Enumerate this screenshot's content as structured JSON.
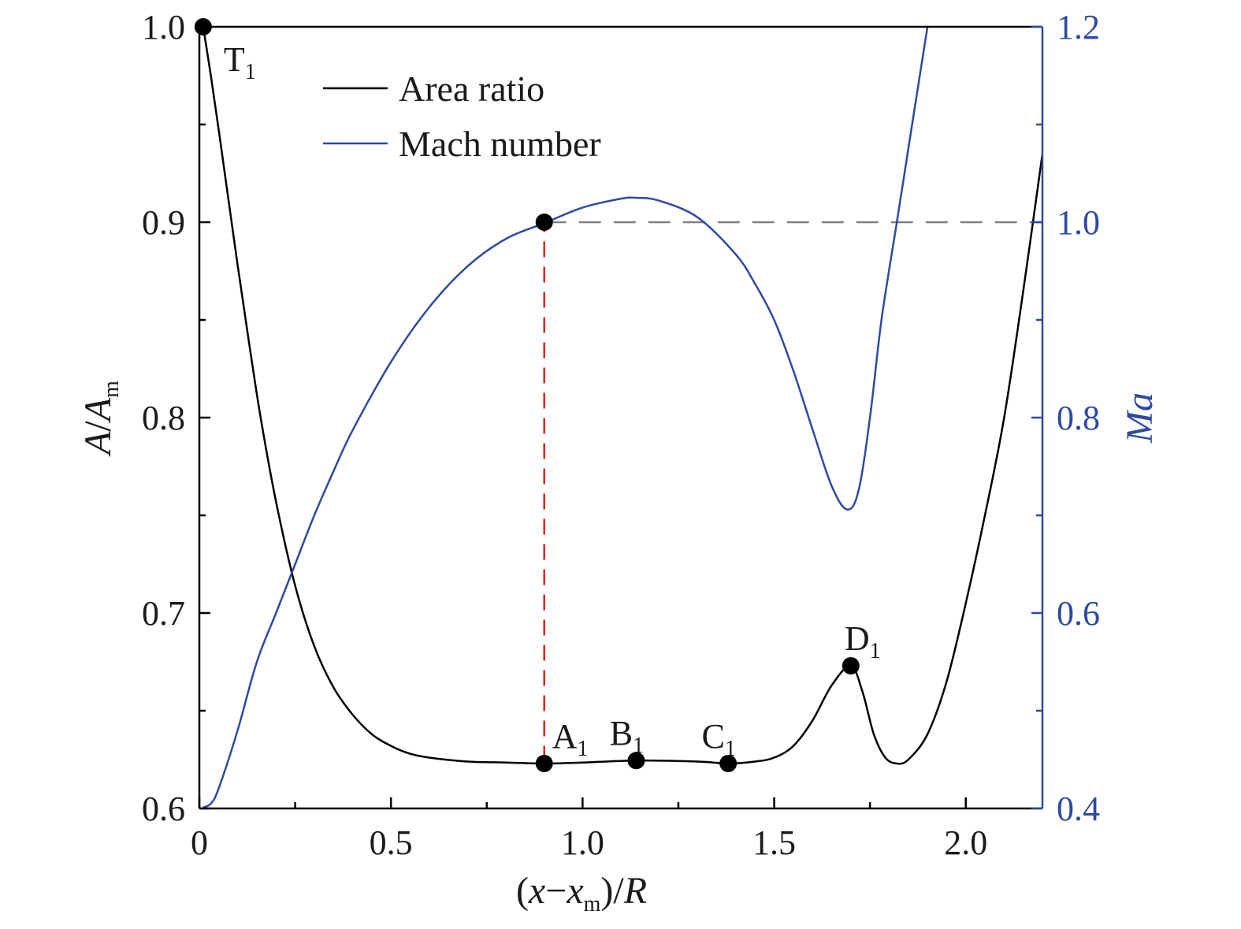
{
  "chart_data": {
    "type": "line",
    "xlabel": {
      "open": "(",
      "var": "x",
      "minus": "−",
      "var2": "x",
      "sub": "m",
      "close": ")/",
      "var3": "R"
    },
    "ylabel_left": {
      "a": "A",
      "slash": "/",
      "b": "A",
      "sub": "m"
    },
    "ylabel_right": "Ma",
    "xlim": [
      0,
      2.2
    ],
    "ylim_left": [
      0.6,
      1.0
    ],
    "ylim_right": [
      0.4,
      1.2
    ],
    "x_ticks": [
      {
        "value": 0,
        "label": "0"
      },
      {
        "value": 0.5,
        "label": "0.5"
      },
      {
        "value": 1.0,
        "label": "1.0"
      },
      {
        "value": 1.5,
        "label": "1.5"
      },
      {
        "value": 2.0,
        "label": "2.0"
      }
    ],
    "x_minor_ticks": [
      0.25,
      0.75,
      1.25,
      1.75
    ],
    "y_left_ticks": [
      {
        "value": 0.6,
        "label": "0.6"
      },
      {
        "value": 0.7,
        "label": "0.7"
      },
      {
        "value": 0.8,
        "label": "0.8"
      },
      {
        "value": 0.9,
        "label": "0.9"
      },
      {
        "value": 1.0,
        "label": "1.0"
      }
    ],
    "y_left_minor_ticks": [
      0.65,
      0.75,
      0.85,
      0.95
    ],
    "y_right_ticks": [
      {
        "value": 0.4,
        "label": "0.4"
      },
      {
        "value": 0.6,
        "label": "0.6"
      },
      {
        "value": 0.8,
        "label": "0.8"
      },
      {
        "value": 1.0,
        "label": "1.0"
      },
      {
        "value": 1.2,
        "label": "1.2"
      }
    ],
    "y_right_minor_ticks": [
      0.5,
      0.7,
      0.9,
      1.1
    ],
    "legend_position": "top-left",
    "grid": false,
    "series": [
      {
        "name": "Area ratio",
        "axis": "left",
        "color": "#000000",
        "x": [
          0.01,
          0.03,
          0.05,
          0.07,
          0.1,
          0.13,
          0.16,
          0.2,
          0.25,
          0.3,
          0.35,
          0.4,
          0.45,
          0.5,
          0.55,
          0.6,
          0.7,
          0.8,
          0.9,
          1.0,
          1.14,
          1.3,
          1.38,
          1.45,
          1.5,
          1.55,
          1.6,
          1.65,
          1.7,
          1.73,
          1.76,
          1.79,
          1.82,
          1.85,
          1.9,
          1.95,
          2.0,
          2.05,
          2.1,
          2.15,
          2.2
        ],
        "values": [
          1.0,
          0.975,
          0.948,
          0.92,
          0.878,
          0.838,
          0.8,
          0.757,
          0.714,
          0.683,
          0.662,
          0.648,
          0.638,
          0.632,
          0.628,
          0.626,
          0.624,
          0.6235,
          0.623,
          0.6235,
          0.6245,
          0.624,
          0.623,
          0.624,
          0.626,
          0.632,
          0.645,
          0.663,
          0.673,
          0.66,
          0.638,
          0.626,
          0.623,
          0.625,
          0.638,
          0.665,
          0.705,
          0.75,
          0.8,
          0.865,
          0.935
        ]
      },
      {
        "name": "Mach number",
        "axis": "right",
        "color": "#2e4aa0",
        "x": [
          0.01,
          0.03,
          0.05,
          0.1,
          0.15,
          0.2,
          0.25,
          0.3,
          0.35,
          0.4,
          0.5,
          0.6,
          0.7,
          0.8,
          0.9,
          1.0,
          1.1,
          1.14,
          1.2,
          1.3,
          1.4,
          1.45,
          1.5,
          1.55,
          1.6,
          1.65,
          1.69,
          1.72,
          1.75,
          1.78,
          1.82,
          1.86,
          1.9
        ],
        "values": [
          0.401,
          0.405,
          0.42,
          0.48,
          0.55,
          0.6,
          0.65,
          0.7,
          0.745,
          0.787,
          0.857,
          0.913,
          0.955,
          0.983,
          0.999,
          1.015,
          1.024,
          1.025,
          1.022,
          1.005,
          0.967,
          0.937,
          0.9,
          0.848,
          0.788,
          0.73,
          0.706,
          0.725,
          0.8,
          0.9,
          1.0,
          1.1,
          1.2
        ]
      }
    ],
    "reference_lines": [
      {
        "orientation": "horizontal",
        "axis": "right",
        "value": 1.0,
        "x_from": 0.9,
        "x_to": 2.2,
        "color": "#808080",
        "dash": true
      },
      {
        "orientation": "vertical",
        "value": 0.9,
        "y_from_left": 0.624,
        "y_to_right": 1.0,
        "color": "#d62728",
        "dash": true
      }
    ],
    "points": [
      {
        "label": "T",
        "sub": "1",
        "x": 0.01,
        "y": 1.0,
        "axis": "left",
        "label_anchor": "below-right"
      },
      {
        "label": "",
        "sub": "",
        "x": 0.9,
        "y": 1.0,
        "axis": "right",
        "label_anchor": "none"
      },
      {
        "label": "A",
        "sub": "1",
        "x": 0.9,
        "y": 0.623,
        "axis": "left",
        "label_anchor": "above-right"
      },
      {
        "label": "B",
        "sub": "1",
        "x": 1.14,
        "y": 0.6245,
        "axis": "left",
        "label_anchor": "above"
      },
      {
        "label": "C",
        "sub": "1",
        "x": 1.38,
        "y": 0.623,
        "axis": "left",
        "label_anchor": "above"
      },
      {
        "label": "D",
        "sub": "1",
        "x": 1.7,
        "y": 0.673,
        "axis": "left",
        "label_anchor": "above-right"
      }
    ]
  }
}
